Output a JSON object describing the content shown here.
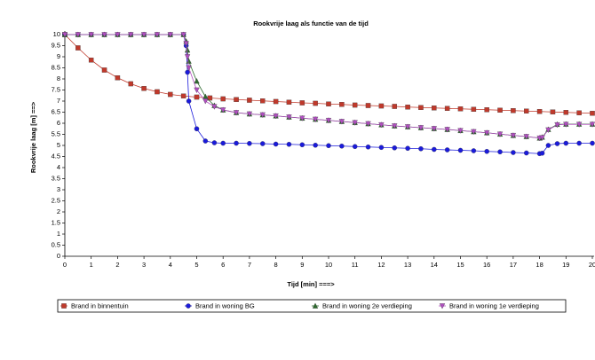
{
  "chart_data": {
    "type": "line",
    "title": "Rookvrije laag  als functie van de tijd",
    "x_label": "Tijd [min] ===>",
    "y_label": "Rookvrije laag [m] ==>",
    "xlim": [
      0,
      20
    ],
    "ylim": [
      0,
      10
    ],
    "xticks": [
      0,
      1,
      2,
      3,
      4,
      5,
      6,
      7,
      8,
      9,
      10,
      11,
      12,
      13,
      14,
      15,
      16,
      17,
      18,
      19,
      20
    ],
    "yticks": [
      0,
      0.5,
      1,
      1.5,
      2,
      2.5,
      3,
      3.5,
      4,
      4.5,
      5,
      5.5,
      6,
      6.5,
      7,
      7.5,
      8,
      8.5,
      9,
      9.5,
      10
    ],
    "series": [
      {
        "name": "Brand in binnentuin",
        "color": "#c0392b",
        "marker": "square",
        "x": [
          0,
          0.5,
          1,
          1.5,
          2,
          2.5,
          3,
          3.5,
          4,
          4.5,
          5,
          5.5,
          6,
          6.5,
          7,
          7.5,
          8,
          8.5,
          9,
          9.5,
          10,
          10.5,
          11,
          11.5,
          12,
          12.5,
          13,
          13.5,
          14,
          14.5,
          15,
          15.5,
          16,
          16.5,
          17,
          17.5,
          18,
          18.5,
          19,
          19.5,
          20
        ],
        "values": [
          10,
          9.4,
          8.85,
          8.4,
          8.05,
          7.78,
          7.57,
          7.42,
          7.3,
          7.23,
          7.18,
          7.14,
          7.1,
          7.07,
          7.04,
          7.01,
          6.98,
          6.95,
          6.92,
          6.9,
          6.87,
          6.85,
          6.82,
          6.8,
          6.78,
          6.76,
          6.73,
          6.71,
          6.69,
          6.67,
          6.65,
          6.63,
          6.61,
          6.59,
          6.57,
          6.55,
          6.53,
          6.51,
          6.49,
          6.47,
          6.45
        ]
      },
      {
        "name": "Brand in woning BG",
        "color": "#1a1adb",
        "marker": "circle",
        "x": [
          0,
          0.5,
          1,
          1.5,
          2,
          2.5,
          3,
          3.5,
          4,
          4.5,
          4.6,
          4.65,
          4.7,
          5,
          5.33,
          5.67,
          6,
          6.5,
          7,
          7.5,
          8,
          8.5,
          9,
          9.5,
          10,
          10.5,
          11,
          11.5,
          12,
          12.5,
          13,
          13.5,
          14,
          14.5,
          15,
          15.5,
          16,
          16.5,
          17,
          17.5,
          18,
          18.1,
          18.33,
          18.67,
          19,
          19.5,
          20
        ],
        "values": [
          10,
          10,
          10,
          10,
          10,
          10,
          10,
          10,
          10,
          10,
          9.5,
          8.3,
          7.0,
          5.75,
          5.2,
          5.12,
          5.1,
          5.1,
          5.09,
          5.08,
          5.06,
          5.05,
          5.03,
          5.01,
          4.99,
          4.97,
          4.95,
          4.93,
          4.91,
          4.89,
          4.87,
          4.85,
          4.82,
          4.8,
          4.78,
          4.76,
          4.73,
          4.71,
          4.68,
          4.66,
          4.63,
          4.65,
          5.0,
          5.08,
          5.1,
          5.1,
          5.1
        ]
      },
      {
        "name": "Brand in woning 2e verdieping",
        "color": "#2e6b2e",
        "marker": "triangle-up",
        "x": [
          0,
          0.5,
          1,
          1.5,
          2,
          2.5,
          3,
          3.5,
          4,
          4.5,
          4.6,
          4.65,
          4.7,
          5,
          5.33,
          5.67,
          6,
          6.5,
          7,
          7.5,
          8,
          8.5,
          9,
          9.5,
          10,
          10.5,
          11,
          11.5,
          12,
          12.5,
          13,
          13.5,
          14,
          14.5,
          15,
          15.5,
          16,
          16.5,
          17,
          17.5,
          18,
          18.1,
          18.33,
          18.67,
          19,
          19.5,
          20
        ],
        "values": [
          10,
          10,
          10,
          10,
          10,
          10,
          10,
          10,
          10,
          10,
          9.7,
          9.3,
          8.8,
          7.9,
          7.2,
          6.8,
          6.6,
          6.48,
          6.42,
          6.38,
          6.33,
          6.28,
          6.23,
          6.18,
          6.13,
          6.08,
          6.03,
          5.98,
          5.93,
          5.88,
          5.84,
          5.8,
          5.76,
          5.72,
          5.67,
          5.62,
          5.57,
          5.51,
          5.45,
          5.4,
          5.33,
          5.37,
          5.72,
          5.95,
          5.96,
          5.96,
          5.96
        ]
      },
      {
        "name": "Brand in woning 1e verdieping",
        "color": "#b04fc0",
        "marker": "triangle-down",
        "x": [
          0,
          0.5,
          1,
          1.5,
          2,
          2.5,
          3,
          3.5,
          4,
          4.5,
          4.6,
          4.65,
          4.7,
          5,
          5.33,
          5.67,
          6,
          6.5,
          7,
          7.5,
          8,
          8.5,
          9,
          9.5,
          10,
          10.5,
          11,
          11.5,
          12,
          12.5,
          13,
          13.5,
          14,
          14.5,
          15,
          15.5,
          16,
          16.5,
          17,
          17.5,
          18,
          18.1,
          18.33,
          18.67,
          19,
          19.5,
          20
        ],
        "values": [
          10,
          10,
          10,
          10,
          10,
          10,
          10,
          10,
          10,
          10,
          9.6,
          9.0,
          8.5,
          7.5,
          7.0,
          6.75,
          6.6,
          6.48,
          6.42,
          6.38,
          6.33,
          6.28,
          6.23,
          6.18,
          6.13,
          6.08,
          6.03,
          5.98,
          5.93,
          5.88,
          5.84,
          5.8,
          5.76,
          5.72,
          5.67,
          5.62,
          5.57,
          5.51,
          5.45,
          5.4,
          5.33,
          5.35,
          5.7,
          5.93,
          5.95,
          5.95,
          5.95
        ]
      }
    ]
  }
}
